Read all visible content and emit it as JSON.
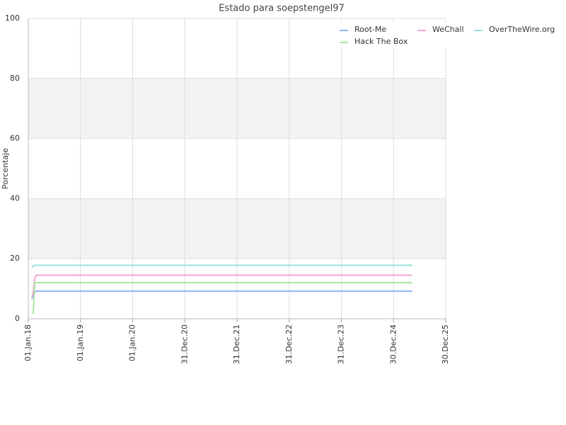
{
  "chart_data": {
    "type": "line",
    "title": "Estado para soepstengel97",
    "y_label": "Porcentaje",
    "x": [
      "2018-01-26",
      "2018-02-05",
      "2018-02-15",
      "2018-02-25",
      "2025-05-10"
    ],
    "series": [
      {
        "name": "Root-Me",
        "color": "#8fb8f2",
        "values": [
          6.5,
          7.5,
          8.8,
          9.2,
          9.2
        ]
      },
      {
        "name": "WeChall",
        "color": "#f2a6d2",
        "values": [
          7,
          9,
          13.5,
          14.5,
          14.5
        ]
      },
      {
        "name": "OverTheWire.org",
        "color": "#97e3d9",
        "values": [
          17,
          17.5,
          17.8,
          17.8,
          17.8
        ]
      },
      {
        "name": "Hack The Box",
        "color": "#a9e8a0",
        "values": [
          2,
          2,
          12,
          12,
          12
        ]
      }
    ],
    "xlim": [
      "2018-01-01",
      "2025-12-30"
    ],
    "xticks": [
      {
        "value": "2018-01-01",
        "label": "01.Jan.18"
      },
      {
        "value": "2019-01-01",
        "label": "01.Jan.19"
      },
      {
        "value": "2020-01-01",
        "label": "01.Jan.20"
      },
      {
        "value": "2020-12-31",
        "label": "31.Dec.20"
      },
      {
        "value": "2021-12-31",
        "label": "31.Dec.21"
      },
      {
        "value": "2022-12-31",
        "label": "31.Dec.22"
      },
      {
        "value": "2023-12-31",
        "label": "31.Dec.23"
      },
      {
        "value": "2024-12-30",
        "label": "30.Dec.24"
      },
      {
        "value": "2025-12-30",
        "label": "30.Dec.25"
      }
    ],
    "ylim": [
      0,
      100
    ],
    "yticks": [
      0,
      20,
      40,
      60,
      80,
      100
    ],
    "grid": true,
    "legend": "top-right"
  }
}
